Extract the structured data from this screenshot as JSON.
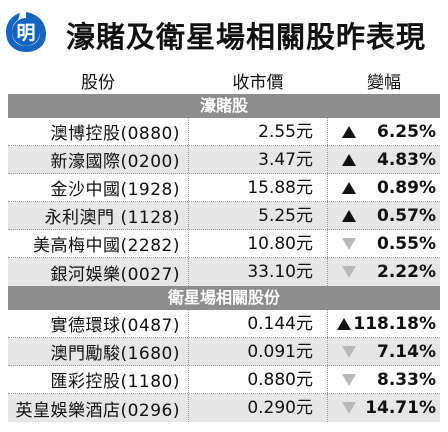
{
  "title": {
    "logo_text": "明",
    "text": "濠賭及衛星場相關股昨表現"
  },
  "headers": {
    "stock": "股份",
    "close": "收市價",
    "change": "變幅"
  },
  "colors": {
    "section_bg": "#8d8d8d",
    "row_alt_bg": "#e6e6e6",
    "logo_blue": "#1565c0",
    "up_arrow": "#111111",
    "down_arrow": "#b9b9b9"
  },
  "sections": [
    {
      "label": "濠賭股",
      "rows": [
        {
          "name": "澳博控股(0880)",
          "price": "2.55元",
          "direction": "up",
          "change": "6.25%"
        },
        {
          "name": "新濠國際(0200)",
          "price": "3.47元",
          "direction": "up",
          "change": "4.83%"
        },
        {
          "name": "金沙中國(1928)",
          "price": "15.88元",
          "direction": "up",
          "change": "0.89%"
        },
        {
          "name": "永利澳門 (1128)",
          "price": "5.25元",
          "direction": "up",
          "change": "0.57%"
        },
        {
          "name": "美高梅中國(2282)",
          "price": "10.80元",
          "direction": "down",
          "change": "0.55%"
        },
        {
          "name": "銀河娛樂(0027)",
          "price": "33.10元",
          "direction": "down",
          "change": "2.22%"
        }
      ]
    },
    {
      "label": "衛星場相關股份",
      "rows": [
        {
          "name": "實德環球(0487)",
          "price": "0.144元",
          "direction": "up",
          "change": "118.18%"
        },
        {
          "name": "澳門勵駿(1680)",
          "price": "0.091元",
          "direction": "down",
          "change": "7.14%"
        },
        {
          "name": "匯彩控股(1180)",
          "price": "0.880元",
          "direction": "down",
          "change": "8.33%"
        },
        {
          "name": "英皇娛樂酒店(0296)",
          "price": "0.290元",
          "direction": "down",
          "change": "14.71%"
        }
      ]
    }
  ]
}
